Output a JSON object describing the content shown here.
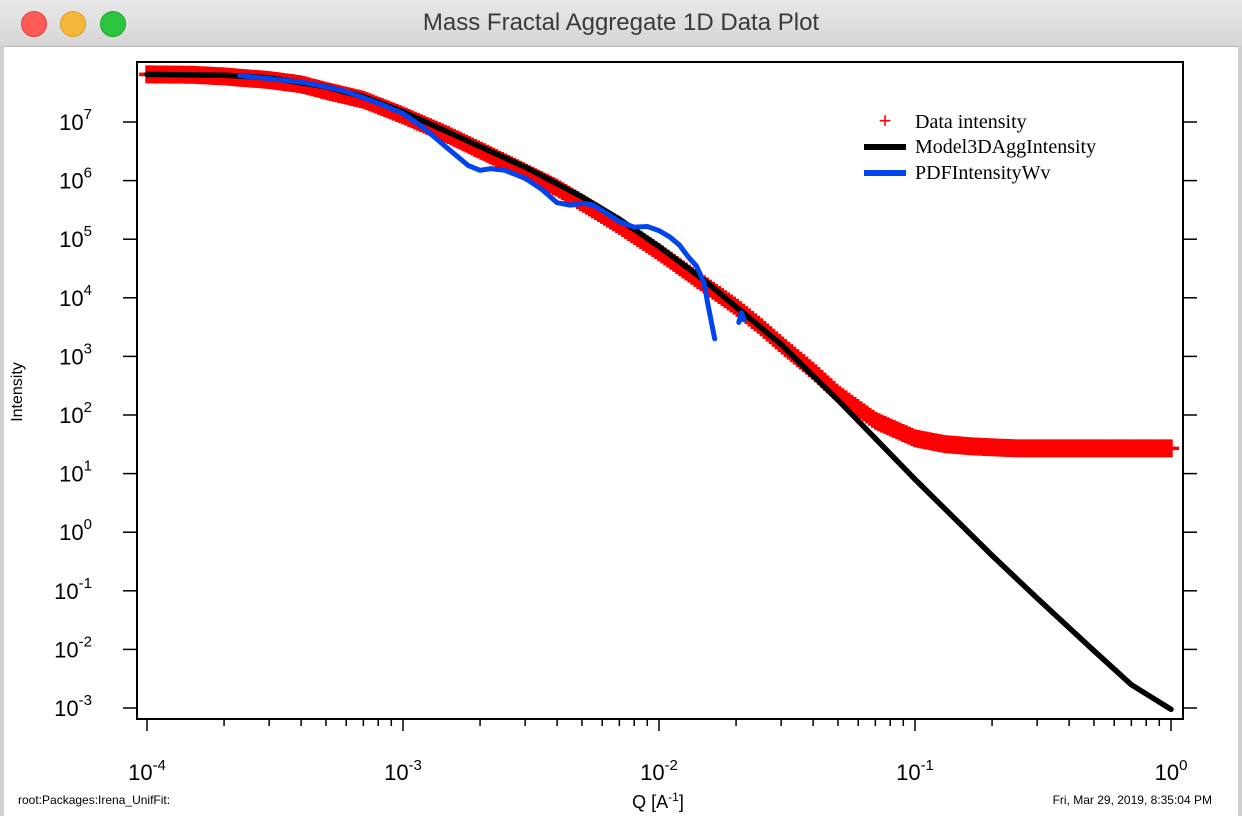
{
  "window": {
    "title": "Mass Fractal Aggregate 1D Data Plot"
  },
  "footer": {
    "left_text": "root:Packages:Irena_UnifFit:",
    "right_text": "Fri, Mar 29, 2019, 8:35:04 PM"
  },
  "colors": {
    "data": "#ff0000",
    "model": "#000000",
    "pdf": "#0044ee"
  },
  "chart_data": {
    "type": "scatter",
    "xlabel": "Q [A-1]",
    "ylabel": "Intensity",
    "xscale": "log",
    "yscale": "log",
    "xlim": [
      9e-05,
      1.1
    ],
    "ylim": [
      0.0005,
      80000000
    ],
    "legend_position": "top-right",
    "x_tick_labels": [
      {
        "value": 0.0001,
        "base": "10",
        "exp": "-4"
      },
      {
        "value": 0.001,
        "base": "10",
        "exp": "-3"
      },
      {
        "value": 0.01,
        "base": "10",
        "exp": "-2"
      },
      {
        "value": 0.1,
        "base": "10",
        "exp": "-1"
      },
      {
        "value": 1,
        "base": "10",
        "exp": "0"
      }
    ],
    "y_tick_labels": [
      {
        "value": 10000000,
        "base": "10",
        "exp": "7"
      },
      {
        "value": 1000000,
        "base": "10",
        "exp": "6"
      },
      {
        "value": 100000,
        "base": "10",
        "exp": "5"
      },
      {
        "value": 10000,
        "base": "10",
        "exp": "4"
      },
      {
        "value": 1000,
        "base": "10",
        "exp": "3"
      },
      {
        "value": 100,
        "base": "10",
        "exp": "2"
      },
      {
        "value": 10,
        "base": "10",
        "exp": "1"
      },
      {
        "value": 1,
        "base": "10",
        "exp": "0"
      },
      {
        "value": 0.1,
        "base": "10",
        "exp": "-1"
      },
      {
        "value": 0.01,
        "base": "10",
        "exp": "-2"
      },
      {
        "value": 0.001,
        "base": "10",
        "exp": "-3"
      }
    ],
    "series": [
      {
        "name": "Data intensity",
        "style": "markers",
        "marker": "+",
        "x": [
          0.0001,
          0.00015,
          0.0002,
          0.0003,
          0.0004,
          0.0005,
          0.0007,
          0.001,
          0.0015,
          0.002,
          0.003,
          0.004,
          0.005,
          0.007,
          0.01,
          0.015,
          0.02,
          0.025,
          0.03,
          0.04,
          0.05,
          0.07,
          0.1,
          0.13,
          0.17,
          0.25,
          0.35,
          0.5,
          0.7,
          1.0
        ],
        "y": [
          65000000,
          64000000,
          60000000,
          52000000,
          44000000,
          34000000,
          24000000,
          13000000,
          6000000,
          3300000,
          1400000,
          750000,
          420000,
          170000,
          60000,
          17000,
          7000,
          3200,
          1600,
          560,
          230,
          80,
          40,
          32,
          29,
          27,
          27,
          27,
          27,
          27
        ]
      },
      {
        "name": "Model3DAggIntensity",
        "style": "line",
        "x": [
          0.0001,
          0.0002,
          0.0003,
          0.0005,
          0.0007,
          0.001,
          0.002,
          0.003,
          0.005,
          0.007,
          0.01,
          0.015,
          0.02,
          0.03,
          0.05,
          0.1,
          0.2,
          0.3,
          0.5,
          0.7,
          1.0
        ],
        "y": [
          65000000,
          63000000,
          57000000,
          40000000,
          27000000,
          15000000,
          3800000,
          1700000,
          530000,
          220000,
          75000,
          20000,
          7000,
          1600,
          180,
          8,
          0.4,
          0.075,
          0.0095,
          0.0025,
          0.00095
        ]
      },
      {
        "name": "PDFIntensityWv",
        "style": "line",
        "x": [
          0.00023,
          0.0003,
          0.0004,
          0.0005,
          0.0006,
          0.0007,
          0.0008,
          0.001,
          0.0012,
          0.0015,
          0.0018,
          0.002,
          0.0022,
          0.0025,
          0.003,
          0.0035,
          0.004,
          0.0045,
          0.005,
          0.0055,
          0.006,
          0.007,
          0.008,
          0.009,
          0.01,
          0.011,
          0.012,
          0.013,
          0.014,
          0.015,
          0.0155,
          0.0165
        ],
        "y": [
          62000000,
          55000000,
          48000000,
          40000000,
          33000000,
          26000000,
          21000000,
          14000000,
          8000000,
          3500000,
          1800000,
          1500000,
          1600000,
          1500000,
          1100000,
          700000,
          420000,
          380000,
          410000,
          390000,
          310000,
          200000,
          160000,
          165000,
          140000,
          110000,
          80000,
          50000,
          35000,
          18000,
          8000,
          2000
        ]
      },
      {
        "name": "",
        "style": "line",
        "x": [
          0.0205,
          0.021,
          0.0215
        ],
        "y": [
          3800,
          5600,
          4200
        ]
      }
    ]
  }
}
